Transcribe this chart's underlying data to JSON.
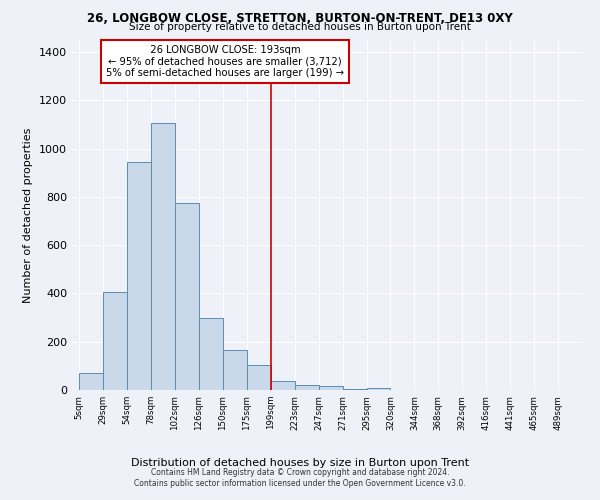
{
  "title": "26, LONGBOW CLOSE, STRETTON, BURTON-ON-TRENT, DE13 0XY",
  "subtitle": "Size of property relative to detached houses in Burton upon Trent",
  "xlabel": "Distribution of detached houses by size in Burton upon Trent",
  "ylabel": "Number of detached properties",
  "footer_line1": "Contains HM Land Registry data © Crown copyright and database right 2024.",
  "footer_line2": "Contains public sector information licensed under the Open Government Licence v3.0.",
  "annotation_line1": "  26 LONGBOW CLOSE: 193sqm  ",
  "annotation_line2": "← 95% of detached houses are smaller (3,712)",
  "annotation_line3": "5% of semi-detached houses are larger (199) →",
  "property_size_idx": 8,
  "bar_color": "#c9d9ea",
  "bar_edge_color": "#5b8db5",
  "vline_color": "#cc0000",
  "annotation_box_color": "#ffffff",
  "annotation_box_edge": "#cc0000",
  "background_color": "#eef2f8",
  "grid_color": "#ffffff",
  "categories": [
    "5sqm",
    "29sqm",
    "54sqm",
    "78sqm",
    "102sqm",
    "126sqm",
    "150sqm",
    "175sqm",
    "199sqm",
    "223sqm",
    "247sqm",
    "271sqm",
    "295sqm",
    "320sqm",
    "344sqm",
    "368sqm",
    "392sqm",
    "416sqm",
    "441sqm",
    "465sqm",
    "489sqm"
  ],
  "values": [
    70,
    405,
    945,
    1105,
    775,
    300,
    165,
    105,
    37,
    20,
    17,
    5,
    10,
    0,
    0,
    0,
    0,
    0,
    0,
    0,
    0
  ],
  "ylim": [
    0,
    1450
  ],
  "yticks": [
    0,
    200,
    400,
    600,
    800,
    1000,
    1200,
    1400
  ]
}
